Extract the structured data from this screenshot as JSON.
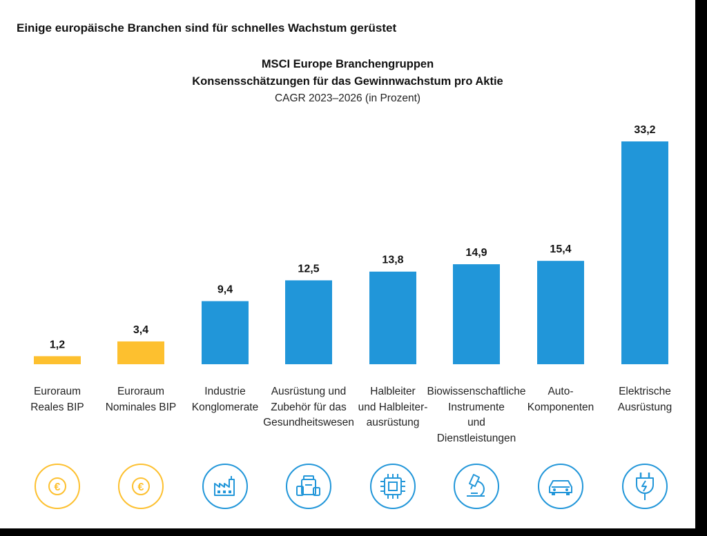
{
  "headline": "Einige europäische Branchen sind für schnelles Wachstum gerüstet",
  "chart_data": {
    "type": "bar",
    "title_line1": "MSCI Europe Branchengruppen",
    "title_line2": "Konsensschätzungen für das Gewinnwachstum pro Aktie",
    "subtitle": "CAGR 2023–2026 (in Prozent)",
    "categories": [
      [
        "Euroraum",
        "Reales BIP"
      ],
      [
        "Euroraum",
        "Nominales BIP"
      ],
      [
        "Industrie",
        "Konglomerate"
      ],
      [
        "Ausrüstung und",
        "Zubehör für das",
        "Gesundheitswesen"
      ],
      [
        "Halbleiter",
        "und Halbleiter-",
        "ausrüstung"
      ],
      [
        "Biowissenschaftliche",
        "Instrumente",
        "und",
        "Dienstleistungen"
      ],
      [
        "Auto-",
        "Komponenten"
      ],
      [
        "Elektrische",
        "Ausrüstung"
      ]
    ],
    "values": [
      1.2,
      3.4,
      9.4,
      12.5,
      13.8,
      14.9,
      15.4,
      33.2
    ],
    "value_labels": [
      "1,2",
      "3,4",
      "9,4",
      "12,5",
      "13,8",
      "14,9",
      "15,4",
      "33,2"
    ],
    "bar_colors": [
      "#FDC02F",
      "#FDC02F",
      "#2196D9",
      "#2196D9",
      "#2196D9",
      "#2196D9",
      "#2196D9",
      "#2196D9"
    ],
    "icons": [
      "euro-icon",
      "euro-icon",
      "factory-icon",
      "medicine-bottles-icon",
      "microchip-icon",
      "microscope-icon",
      "car-icon",
      "electric-plug-icon"
    ],
    "ylim": [
      0,
      33.2
    ],
    "grid": false
  },
  "colors": {
    "yellow": "#FDC02F",
    "blue": "#2196D9",
    "frame": "#000000"
  }
}
